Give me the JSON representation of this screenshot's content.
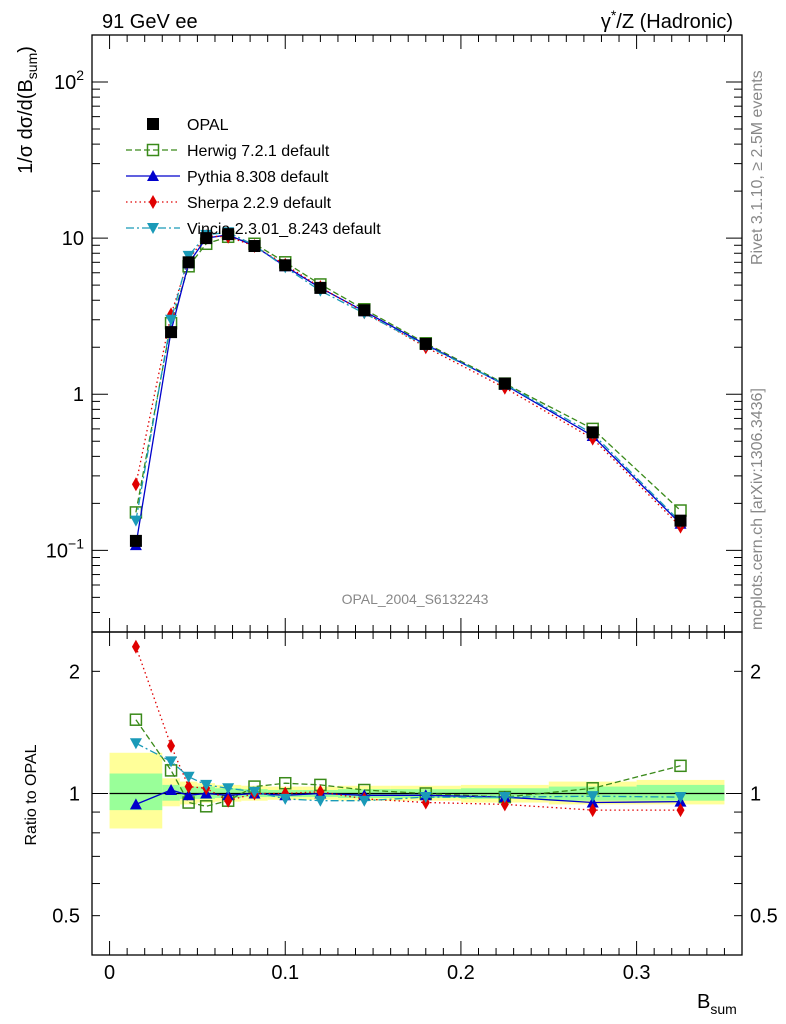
{
  "header": {
    "left_label": "91 GeV ee",
    "right_label_prefix": "γ",
    "right_label_sup": "*",
    "right_label_suffix": "/Z (Hadronic)"
  },
  "side_labels": {
    "rivet_prefix": "Rivet 3.1.10, ",
    "rivet_geq": "≥",
    "rivet_suffix": " 2.5M events",
    "mcplots": "mcplots.cern.ch [arXiv:1306.3436]"
  },
  "watermark": "OPAL_2004_S6132243",
  "colors": {
    "data": "#000000",
    "herwig": "#3a8a1a",
    "pythia": "#0000cc",
    "sherpa": "#e00000",
    "vincia": "#1a9ab8",
    "band_inner": "#99ff99",
    "band_outer": "#ffff99",
    "watermark": "#888888"
  },
  "chart_data": [
    {
      "type": "line",
      "panel": "main",
      "ylabel_prefix": "1/σ dσ/d(B",
      "ylabel_sub": "sum",
      "ylabel_suffix": ")",
      "y_scale": "log",
      "ylim": [
        0.03,
        200
      ],
      "xlim": [
        -0.01,
        0.36
      ],
      "y_ticks": [
        {
          "value": 0.1,
          "base": "10",
          "exp": "−1"
        },
        {
          "value": 1,
          "label": "1"
        },
        {
          "value": 10,
          "label": "10"
        },
        {
          "value": 100,
          "base": "10",
          "exp": "2"
        }
      ],
      "legend_position": "top-left",
      "x": [
        0.015,
        0.035,
        0.045,
        0.055,
        0.0675,
        0.0825,
        0.1,
        0.12,
        0.145,
        0.18,
        0.225,
        0.275,
        0.325
      ],
      "series": [
        {
          "name": "OPAL",
          "key": "data",
          "marker": "square-filled",
          "line": "none",
          "values": [
            0.115,
            2.5,
            7.0,
            10.0,
            10.6,
            8.9,
            6.7,
            4.8,
            3.45,
            2.1,
            1.17,
            0.57,
            0.155
          ]
        },
        {
          "name": "Herwig 7.2.1 default",
          "key": "herwig",
          "marker": "square-open",
          "line": "dashed",
          "values": [
            0.175,
            2.85,
            6.6,
            9.2,
            10.2,
            9.2,
            7.0,
            5.05,
            3.5,
            2.12,
            1.17,
            0.6,
            0.18
          ]
        },
        {
          "name": "Pythia 8.308 default",
          "key": "pythia",
          "marker": "triangle-up",
          "line": "solid",
          "values": [
            0.108,
            2.55,
            6.9,
            10.0,
            10.5,
            8.9,
            6.6,
            4.8,
            3.4,
            2.08,
            1.15,
            0.54,
            0.148
          ]
        },
        {
          "name": "Sherpa 2.2.9 default",
          "key": "sherpa",
          "marker": "diamond",
          "line": "dotted",
          "values": [
            0.265,
            3.25,
            7.3,
            10.3,
            10.2,
            8.9,
            6.75,
            4.85,
            3.35,
            2.0,
            1.1,
            0.52,
            0.142
          ]
        },
        {
          "name": "Vincia 2.3.01_8.243 default",
          "key": "vincia",
          "marker": "triangle-down",
          "line": "dashdot",
          "values": [
            0.155,
            3.0,
            7.7,
            10.5,
            10.9,
            9.0,
            6.5,
            4.6,
            3.3,
            2.05,
            1.16,
            0.56,
            0.152
          ]
        }
      ]
    },
    {
      "type": "line",
      "panel": "ratio",
      "ylabel": "Ratio to OPAL",
      "xlabel_main": "B",
      "xlabel_sub": "sum",
      "y_scale": "log",
      "ylim": [
        0.4,
        2.5
      ],
      "xlim": [
        -0.01,
        0.36
      ],
      "y_ticks": [
        0.5,
        1,
        2
      ],
      "x_ticks": [
        0,
        0.1,
        0.2,
        0.3
      ],
      "x_tick_labels": [
        "0",
        "0.1",
        "0.2",
        "0.3"
      ],
      "reference_line": 1,
      "x": [
        0.015,
        0.035,
        0.045,
        0.055,
        0.0675,
        0.0825,
        0.1,
        0.12,
        0.145,
        0.18,
        0.225,
        0.275,
        0.325
      ],
      "bands": {
        "edges": [
          0.0,
          0.03,
          0.04,
          0.05,
          0.06,
          0.075,
          0.09,
          0.11,
          0.13,
          0.16,
          0.2,
          0.25,
          0.3,
          0.35
        ],
        "inner": [
          [
            0.91,
            1.12
          ],
          [
            0.96,
            1.05
          ],
          [
            0.97,
            1.04
          ],
          [
            0.97,
            1.04
          ],
          [
            0.975,
            1.03
          ],
          [
            0.98,
            1.025
          ],
          [
            0.98,
            1.02
          ],
          [
            0.98,
            1.02
          ],
          [
            0.975,
            1.025
          ],
          [
            0.975,
            1.025
          ],
          [
            0.97,
            1.03
          ],
          [
            0.96,
            1.04
          ],
          [
            0.96,
            1.05
          ]
        ],
        "outer": [
          [
            0.82,
            1.26
          ],
          [
            0.93,
            1.09
          ],
          [
            0.94,
            1.07
          ],
          [
            0.95,
            1.06
          ],
          [
            0.955,
            1.05
          ],
          [
            0.96,
            1.045
          ],
          [
            0.965,
            1.04
          ],
          [
            0.965,
            1.04
          ],
          [
            0.96,
            1.045
          ],
          [
            0.96,
            1.045
          ],
          [
            0.95,
            1.05
          ],
          [
            0.94,
            1.07
          ],
          [
            0.94,
            1.08
          ]
        ]
      },
      "series": [
        {
          "name": "Herwig 7.2.1 default",
          "key": "herwig",
          "marker": "square-open",
          "line": "dashed",
          "values": [
            1.52,
            1.14,
            0.95,
            0.93,
            0.96,
            1.04,
            1.06,
            1.05,
            1.02,
            1.0,
            0.98,
            1.03,
            1.17
          ]
        },
        {
          "name": "Pythia 8.308 default",
          "key": "pythia",
          "marker": "triangle-up",
          "line": "solid",
          "values": [
            0.94,
            1.02,
            0.99,
            1.0,
            0.99,
            1.0,
            0.99,
            1.0,
            0.99,
            0.99,
            0.98,
            0.95,
            0.955
          ]
        },
        {
          "name": "Sherpa 2.2.9 default",
          "key": "sherpa",
          "marker": "diamond",
          "line": "dotted",
          "values": [
            2.3,
            1.31,
            1.04,
            1.03,
            0.96,
            1.0,
            1.0,
            1.01,
            0.97,
            0.95,
            0.94,
            0.91,
            0.91
          ]
        },
        {
          "name": "Vincia 2.3.01_8.243 default",
          "key": "vincia",
          "marker": "triangle-down",
          "line": "dashdot",
          "values": [
            1.33,
            1.2,
            1.1,
            1.05,
            1.03,
            1.01,
            0.97,
            0.96,
            0.96,
            0.98,
            0.98,
            0.985,
            0.98
          ]
        }
      ]
    }
  ]
}
